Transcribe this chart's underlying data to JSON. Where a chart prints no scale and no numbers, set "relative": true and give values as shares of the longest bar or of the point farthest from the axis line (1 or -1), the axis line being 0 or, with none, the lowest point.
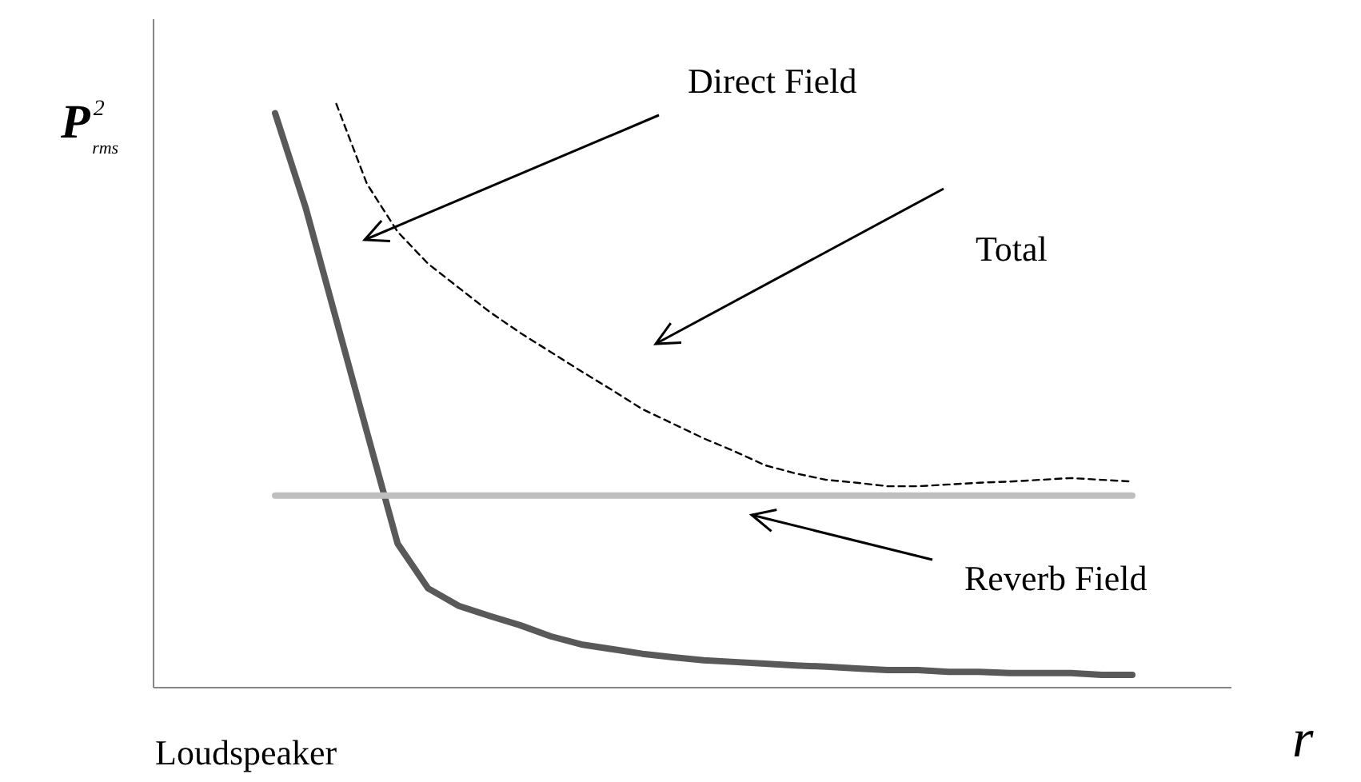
{
  "chart_data": {
    "type": "line",
    "relative": true,
    "xlabel": "r",
    "ylabel": "P$^{2}$$_{rms}$",
    "categories": [
      null,
      null,
      null,
      null,
      null,
      null,
      null,
      null,
      null,
      null,
      null,
      null,
      null,
      null,
      null,
      null,
      null,
      null,
      null,
      null,
      null,
      null,
      null,
      null,
      null,
      null,
      null,
      null,
      null
    ],
    "series": [
      {
        "color": "#595959",
        "line_style": "solid",
        "values": [
          0.984,
          0.822,
          0.63,
          0.438,
          0.247,
          0.17,
          0.14,
          0.123,
          0.107,
          0.088,
          0.074,
          0.066,
          0.058,
          0.052,
          0.047,
          0.044,
          0.041,
          0.038,
          0.036,
          0.033,
          0.03,
          0.03,
          0.027,
          0.027,
          0.025,
          0.025,
          0.025,
          0.022,
          0.022
        ]
      },
      {
        "color": "#bfbfbf",
        "line_style": "solid",
        "values": [
          0.329,
          0.329,
          0.329,
          0.329,
          0.329,
          0.329,
          0.329,
          0.329,
          0.329,
          0.329,
          0.329,
          0.329,
          0.329,
          0.329,
          0.329,
          0.329,
          0.329,
          0.329,
          0.329,
          0.329,
          0.329,
          0.329,
          0.329,
          0.329,
          0.329,
          0.329,
          0.329,
          0.329,
          0.329
        ]
      },
      {
        "color": "#000000",
        "line_style": "dashed",
        "values": [
          null,
          null,
          1.0,
          0.863,
          0.781,
          0.726,
          0.685,
          0.644,
          0.608,
          0.575,
          0.542,
          0.51,
          0.477,
          0.452,
          0.427,
          0.405,
          0.381,
          0.367,
          0.356,
          0.351,
          0.345,
          0.345,
          0.348,
          0.351,
          0.353,
          0.356,
          0.359,
          0.356,
          0.353
        ]
      }
    ],
    "annotations": [
      "Direct Field",
      "Total",
      "Reverb Field",
      "Loudspeaker"
    ],
    "tick_labels": false,
    "marker": "none"
  }
}
